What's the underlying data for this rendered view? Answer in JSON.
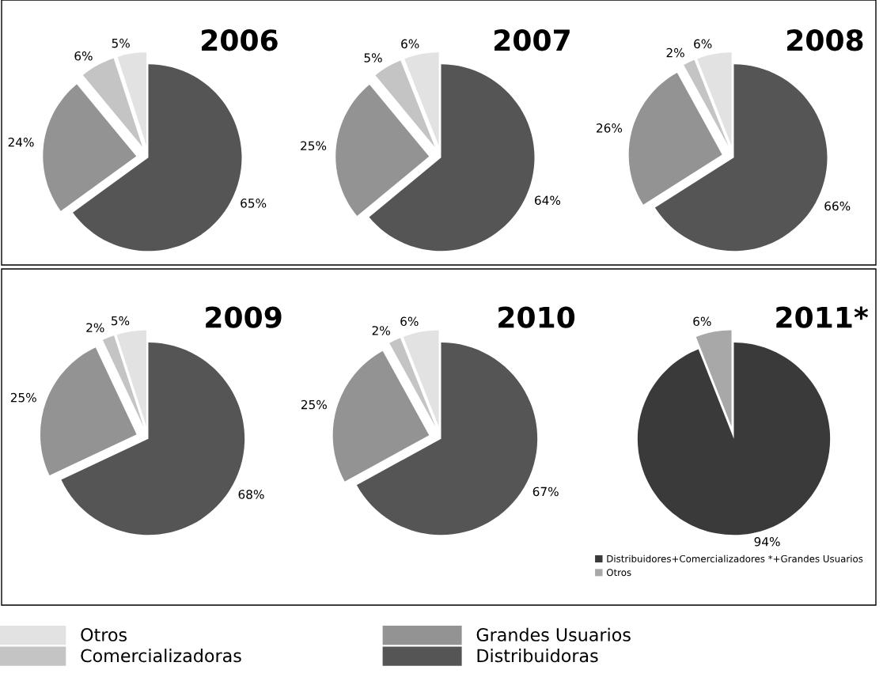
{
  "chart_data": [
    {
      "type": "pie",
      "title": "2006",
      "categories": [
        "Distribuidoras",
        "Grandes Usuarios",
        "Comercializadoras",
        "Otros"
      ],
      "values": [
        65,
        24,
        6,
        5
      ],
      "value_labels": [
        "65%",
        "24%",
        "6%",
        "5%"
      ],
      "colors": [
        "#555555",
        "#939393",
        "#c4c4c4",
        "#e2e2e2"
      ],
      "legend": "bottom"
    },
    {
      "type": "pie",
      "title": "2007",
      "categories": [
        null,
        null,
        null,
        null
      ],
      "values": [
        64,
        25,
        5,
        6
      ],
      "value_labels": [
        "64%",
        "25%",
        "5%",
        "6%"
      ],
      "colors": [
        "#555555",
        "#939393",
        "#c4c4c4",
        "#e2e2e2"
      ]
    },
    {
      "type": "pie",
      "title": "2008",
      "categories": [
        null,
        null,
        null,
        null
      ],
      "values": [
        66,
        26,
        2,
        6
      ],
      "value_labels": [
        "66%",
        "26%",
        "2%",
        "6%"
      ],
      "colors": [
        "#555555",
        "#939393",
        "#c4c4c4",
        "#e2e2e2"
      ]
    },
    {
      "type": "pie",
      "title": "2009",
      "categories": [
        null,
        null,
        null,
        null
      ],
      "values": [
        68,
        25,
        2,
        5
      ],
      "value_labels": [
        "68%",
        "25%",
        "2%",
        "5%"
      ],
      "colors": [
        "#555555",
        "#939393",
        "#c4c4c4",
        "#e2e2e2"
      ]
    },
    {
      "type": "pie",
      "title": "2010",
      "categories": [
        null,
        null,
        null,
        null
      ],
      "values": [
        67,
        25,
        2,
        6
      ],
      "value_labels": [
        "67%",
        "25%",
        "2%",
        "6%"
      ],
      "colors": [
        "#555555",
        "#939393",
        "#c4c4c4",
        "#e2e2e2"
      ]
    },
    {
      "type": "pie",
      "title": "2011*",
      "categories": [
        "Distribuidores+Comercializadores *+Grandes Usuarios",
        "Otros"
      ],
      "values": [
        94,
        6
      ],
      "value_labels": [
        "94%",
        "6%"
      ],
      "colors": [
        "#3a3a3a",
        "#a8a8a8"
      ],
      "legend": "bottom"
    }
  ]
}
